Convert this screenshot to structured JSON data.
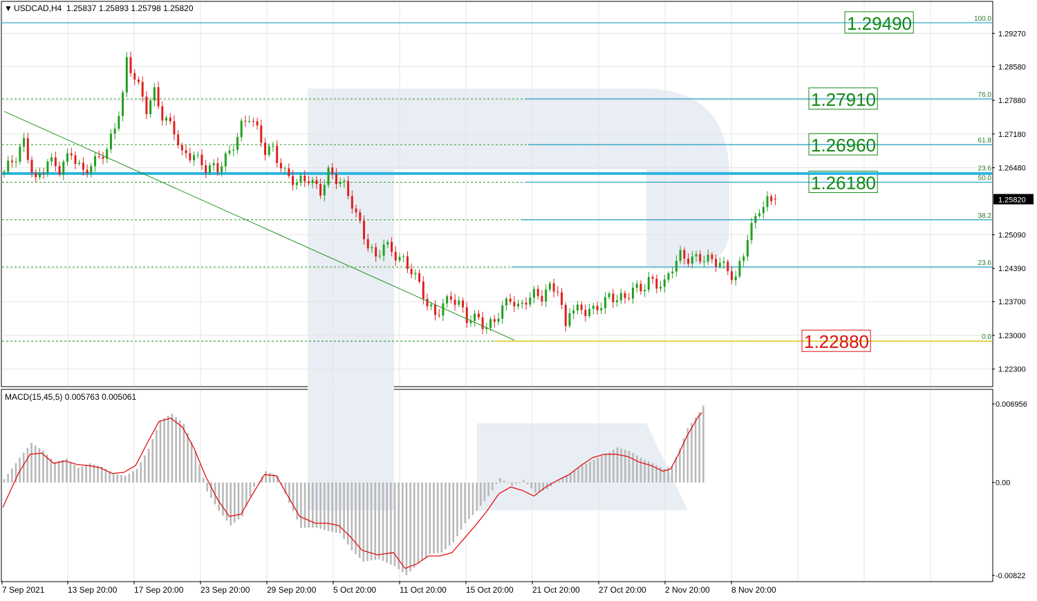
{
  "header": {
    "symbol_label": "USDCAD,H4",
    "ohlc_label": "1.25837 1.25893 1.25798 1.25820"
  },
  "chart_data": [
    {
      "type": "candlestick",
      "symbol": "USDCAD",
      "timeframe": "H4",
      "ohlc": {
        "open": 1.25837,
        "high": 1.25893,
        "low": 1.25798,
        "close": 1.2582
      },
      "current_price_label": "1.25820",
      "ylim": [
        1.2195,
        1.2992
      ],
      "y_ticks": [
        "1.29270",
        "1.28580",
        "1.27880",
        "1.27180",
        "1.26480",
        "1.25090",
        "1.24390",
        "1.23700",
        "1.23000",
        "1.22300"
      ],
      "y_tick_values": [
        1.2927,
        1.2858,
        1.2788,
        1.2718,
        1.2648,
        1.2509,
        1.2439,
        1.237,
        1.23,
        1.223
      ],
      "x_ticks": [
        "7 Sep 2021",
        "13 Sep 20:00",
        "17 Sep 20:00",
        "23 Sep 20:00",
        "29 Sep 20:00",
        "5 Oct 20:00",
        "11 Oct 20:00",
        "15 Oct 20:00",
        "21 Oct 20:00",
        "27 Oct 20:00",
        "2 Nov 20:00",
        "8 Nov 20:00"
      ],
      "close_path": [
        [
          0,
          1.264
        ],
        [
          3,
          1.2665
        ],
        [
          5,
          1.27
        ],
        [
          8,
          1.2625
        ],
        [
          11,
          1.266
        ],
        [
          14,
          1.264
        ],
        [
          17,
          1.2685
        ],
        [
          20,
          1.264
        ],
        [
          23,
          1.2655
        ],
        [
          26,
          1.2685
        ],
        [
          28,
          1.274
        ],
        [
          30,
          1.28
        ],
        [
          31,
          1.287
        ],
        [
          33,
          1.283
        ],
        [
          36,
          1.277
        ],
        [
          38,
          1.281
        ],
        [
          40,
          1.276
        ],
        [
          43,
          1.272
        ],
        [
          45,
          1.267
        ],
        [
          48,
          1.268
        ],
        [
          51,
          1.265
        ],
        [
          54,
          1.264
        ],
        [
          57,
          1.268
        ],
        [
          60,
          1.274
        ],
        [
          62,
          1.2755
        ],
        [
          64,
          1.272
        ],
        [
          66,
          1.268
        ],
        [
          68,
          1.269
        ],
        [
          71,
          1.264
        ],
        [
          74,
          1.261
        ],
        [
          77,
          1.2625
        ],
        [
          80,
          1.2605
        ],
        [
          82,
          1.264
        ],
        [
          84,
          1.262
        ],
        [
          86,
          1.2605
        ],
        [
          88,
          1.2575
        ],
        [
          90,
          1.2535
        ],
        [
          92,
          1.249
        ],
        [
          94,
          1.2455
        ],
        [
          96,
          1.2485
        ],
        [
          98,
          1.2475
        ],
        [
          101,
          1.246
        ],
        [
          103,
          1.2435
        ],
        [
          105,
          1.24
        ],
        [
          107,
          1.236
        ],
        [
          109,
          1.2345
        ],
        [
          111,
          1.237
        ],
        [
          113,
          1.238
        ],
        [
          115,
          1.236
        ],
        [
          117,
          1.233
        ],
        [
          120,
          1.234
        ],
        [
          122,
          1.232
        ],
        [
          124,
          1.233
        ],
        [
          126,
          1.235
        ],
        [
          128,
          1.2375
        ],
        [
          130,
          1.236
        ],
        [
          132,
          1.238
        ],
        [
          134,
          1.2385
        ],
        [
          136,
          1.2375
        ],
        [
          138,
          1.2395
        ],
        [
          140,
          1.24
        ],
        [
          142,
          1.232
        ],
        [
          143,
          1.236
        ],
        [
          145,
          1.235
        ],
        [
          147,
          1.2345
        ],
        [
          149,
          1.235
        ],
        [
          151,
          1.237
        ],
        [
          153,
          1.2385
        ],
        [
          155,
          1.2375
        ],
        [
          157,
          1.237
        ],
        [
          159,
          1.2395
        ],
        [
          161,
          1.24
        ],
        [
          163,
          1.242
        ],
        [
          165,
          1.2405
        ],
        [
          167,
          1.24
        ],
        [
          169,
          1.244
        ],
        [
          171,
          1.247
        ],
        [
          173,
          1.2465
        ],
        [
          175,
          1.246
        ],
        [
          177,
          1.2455
        ],
        [
          179,
          1.245
        ],
        [
          181,
          1.2455
        ],
        [
          183,
          1.244
        ],
        [
          185,
          1.242
        ],
        [
          187,
          1.2465
        ],
        [
          188,
          1.25
        ],
        [
          190,
          1.254
        ],
        [
          191,
          1.2565
        ],
        [
          193,
          1.2584
        ],
        [
          195,
          1.2582
        ]
      ],
      "fibonacci_upper": [
        {
          "level": "100.0",
          "price_label": "1.29490"
        },
        {
          "level": "76.0",
          "price_label": "1.27910"
        },
        {
          "level": "61.8",
          "price_label": "1.26960"
        },
        {
          "level": "23.6",
          "price_label": ""
        },
        {
          "level": "50.0",
          "price_label": "1.26180"
        },
        {
          "level": "38.2",
          "price_label": ""
        },
        {
          "level": "23.6",
          "price_label": ""
        },
        {
          "level": "0.0",
          "price_label": "1.22880"
        }
      ],
      "fibonacci_upper_values": [
        1.2949,
        1.2791,
        1.2696,
        1.2638,
        1.2618,
        1.254,
        1.2442,
        1.2288
      ],
      "horizontal_level_blue": 1.2636,
      "trendline": {
        "from": [
          0,
          1.2765
        ],
        "to": [
          129,
          1.229
        ]
      },
      "grid": true,
      "colors": {
        "bull_candle": "#22a020",
        "bear_candle": "#e02020",
        "fib_line": "#1f9fc2",
        "dotted_level": "#2a9a2a",
        "label_green_text": "#118811",
        "label_red_text": "#e01010",
        "trendline": "#1f8f1f",
        "watermark": "#e6eaf2"
      }
    },
    {
      "type": "bar+line",
      "indicator": "MACD(15,45,5)",
      "label": "MACD(15,45,5) 0.005763 0.005061",
      "values": {
        "macd": 0.005763,
        "signal": 0.005061
      },
      "ylim": [
        -0.00822,
        0.006956
      ],
      "y_ticks": [
        "0.006956",
        "0.00",
        "-0.00822"
      ],
      "y_tick_values": [
        0.006956,
        0.0,
        -0.00822
      ],
      "histogram_path": [
        [
          0,
          0.0003
        ],
        [
          4,
          0.0022
        ],
        [
          7,
          0.0035
        ],
        [
          10,
          0.0028
        ],
        [
          13,
          0.0018
        ],
        [
          16,
          0.0021
        ],
        [
          19,
          0.0013
        ],
        [
          22,
          0.0017
        ],
        [
          25,
          0.0014
        ],
        [
          28,
          0.0008
        ],
        [
          31,
          0.0006
        ],
        [
          34,
          0.0012
        ],
        [
          37,
          0.003
        ],
        [
          40,
          0.0055
        ],
        [
          43,
          0.0061
        ],
        [
          46,
          0.0052
        ],
        [
          49,
          0.0028
        ],
        [
          52,
          -0.0008
        ],
        [
          55,
          -0.0025
        ],
        [
          58,
          -0.0038
        ],
        [
          61,
          -0.003
        ],
        [
          64,
          -0.0004
        ],
        [
          67,
          0.001
        ],
        [
          70,
          0.0006
        ],
        [
          73,
          -0.0018
        ],
        [
          76,
          -0.004
        ],
        [
          80,
          -0.004
        ],
        [
          83,
          -0.0043
        ],
        [
          86,
          -0.0045
        ],
        [
          89,
          -0.006
        ],
        [
          92,
          -0.007
        ],
        [
          96,
          -0.0068
        ],
        [
          100,
          -0.0074
        ],
        [
          103,
          -0.0082
        ],
        [
          106,
          -0.0072
        ],
        [
          109,
          -0.0063
        ],
        [
          112,
          -0.0062
        ],
        [
          115,
          -0.0053
        ],
        [
          118,
          -0.0036
        ],
        [
          121,
          -0.0025
        ],
        [
          124,
          -0.0012
        ],
        [
          127,
          0.0004
        ],
        [
          130,
          -0.0003
        ],
        [
          133,
          0.0002
        ],
        [
          136,
          -0.0009
        ],
        [
          139,
          -0.0006
        ],
        [
          142,
          0.0002
        ],
        [
          145,
          0.0008
        ],
        [
          148,
          0.0015
        ],
        [
          151,
          0.002
        ],
        [
          154,
          0.0025
        ],
        [
          157,
          0.0031
        ],
        [
          160,
          0.0028
        ],
        [
          163,
          0.0022
        ],
        [
          166,
          0.0017
        ],
        [
          169,
          0.0012
        ],
        [
          171,
          0.0015
        ],
        [
          173,
          0.003
        ],
        [
          175,
          0.0048
        ],
        [
          178,
          0.0062
        ],
        [
          179,
          0.0068
        ]
      ],
      "signal_path": [
        [
          0,
          -0.0022
        ],
        [
          4,
          0.0008
        ],
        [
          7,
          0.0025
        ],
        [
          10,
          0.0026
        ],
        [
          13,
          0.0017
        ],
        [
          16,
          0.0019
        ],
        [
          19,
          0.0016
        ],
        [
          22,
          0.0015
        ],
        [
          25,
          0.0013
        ],
        [
          28,
          0.0008
        ],
        [
          31,
          0.0009
        ],
        [
          34,
          0.0015
        ],
        [
          37,
          0.0035
        ],
        [
          40,
          0.0054
        ],
        [
          43,
          0.0057
        ],
        [
          46,
          0.0049
        ],
        [
          49,
          0.003
        ],
        [
          52,
          0.0005
        ],
        [
          55,
          -0.0015
        ],
        [
          58,
          -0.003
        ],
        [
          61,
          -0.0028
        ],
        [
          64,
          -0.001
        ],
        [
          67,
          0.0007
        ],
        [
          70,
          0.0006
        ],
        [
          73,
          -0.0012
        ],
        [
          76,
          -0.003
        ],
        [
          80,
          -0.0036
        ],
        [
          83,
          -0.0036
        ],
        [
          86,
          -0.0038
        ],
        [
          89,
          -0.0048
        ],
        [
          92,
          -0.006
        ],
        [
          96,
          -0.0064
        ],
        [
          100,
          -0.0062
        ],
        [
          103,
          -0.0076
        ],
        [
          106,
          -0.0072
        ],
        [
          109,
          -0.0065
        ],
        [
          112,
          -0.0065
        ],
        [
          115,
          -0.0062
        ],
        [
          118,
          -0.005
        ],
        [
          121,
          -0.0038
        ],
        [
          124,
          -0.0025
        ],
        [
          127,
          -0.001
        ],
        [
          130,
          -0.0004
        ],
        [
          133,
          -0.0007
        ],
        [
          136,
          -0.0012
        ],
        [
          139,
          -0.0004
        ],
        [
          142,
          0.0002
        ],
        [
          145,
          0.0007
        ],
        [
          148,
          0.0015
        ],
        [
          151,
          0.0022
        ],
        [
          154,
          0.0025
        ],
        [
          157,
          0.0025
        ],
        [
          160,
          0.0023
        ],
        [
          163,
          0.0018
        ],
        [
          166,
          0.0015
        ],
        [
          169,
          0.001
        ],
        [
          171,
          0.0012
        ],
        [
          173,
          0.0025
        ],
        [
          175,
          0.004
        ],
        [
          178,
          0.0058
        ],
        [
          179,
          0.0062
        ]
      ],
      "colors": {
        "histogram": "#b8b8b8",
        "signal": "#e01010"
      }
    }
  ]
}
